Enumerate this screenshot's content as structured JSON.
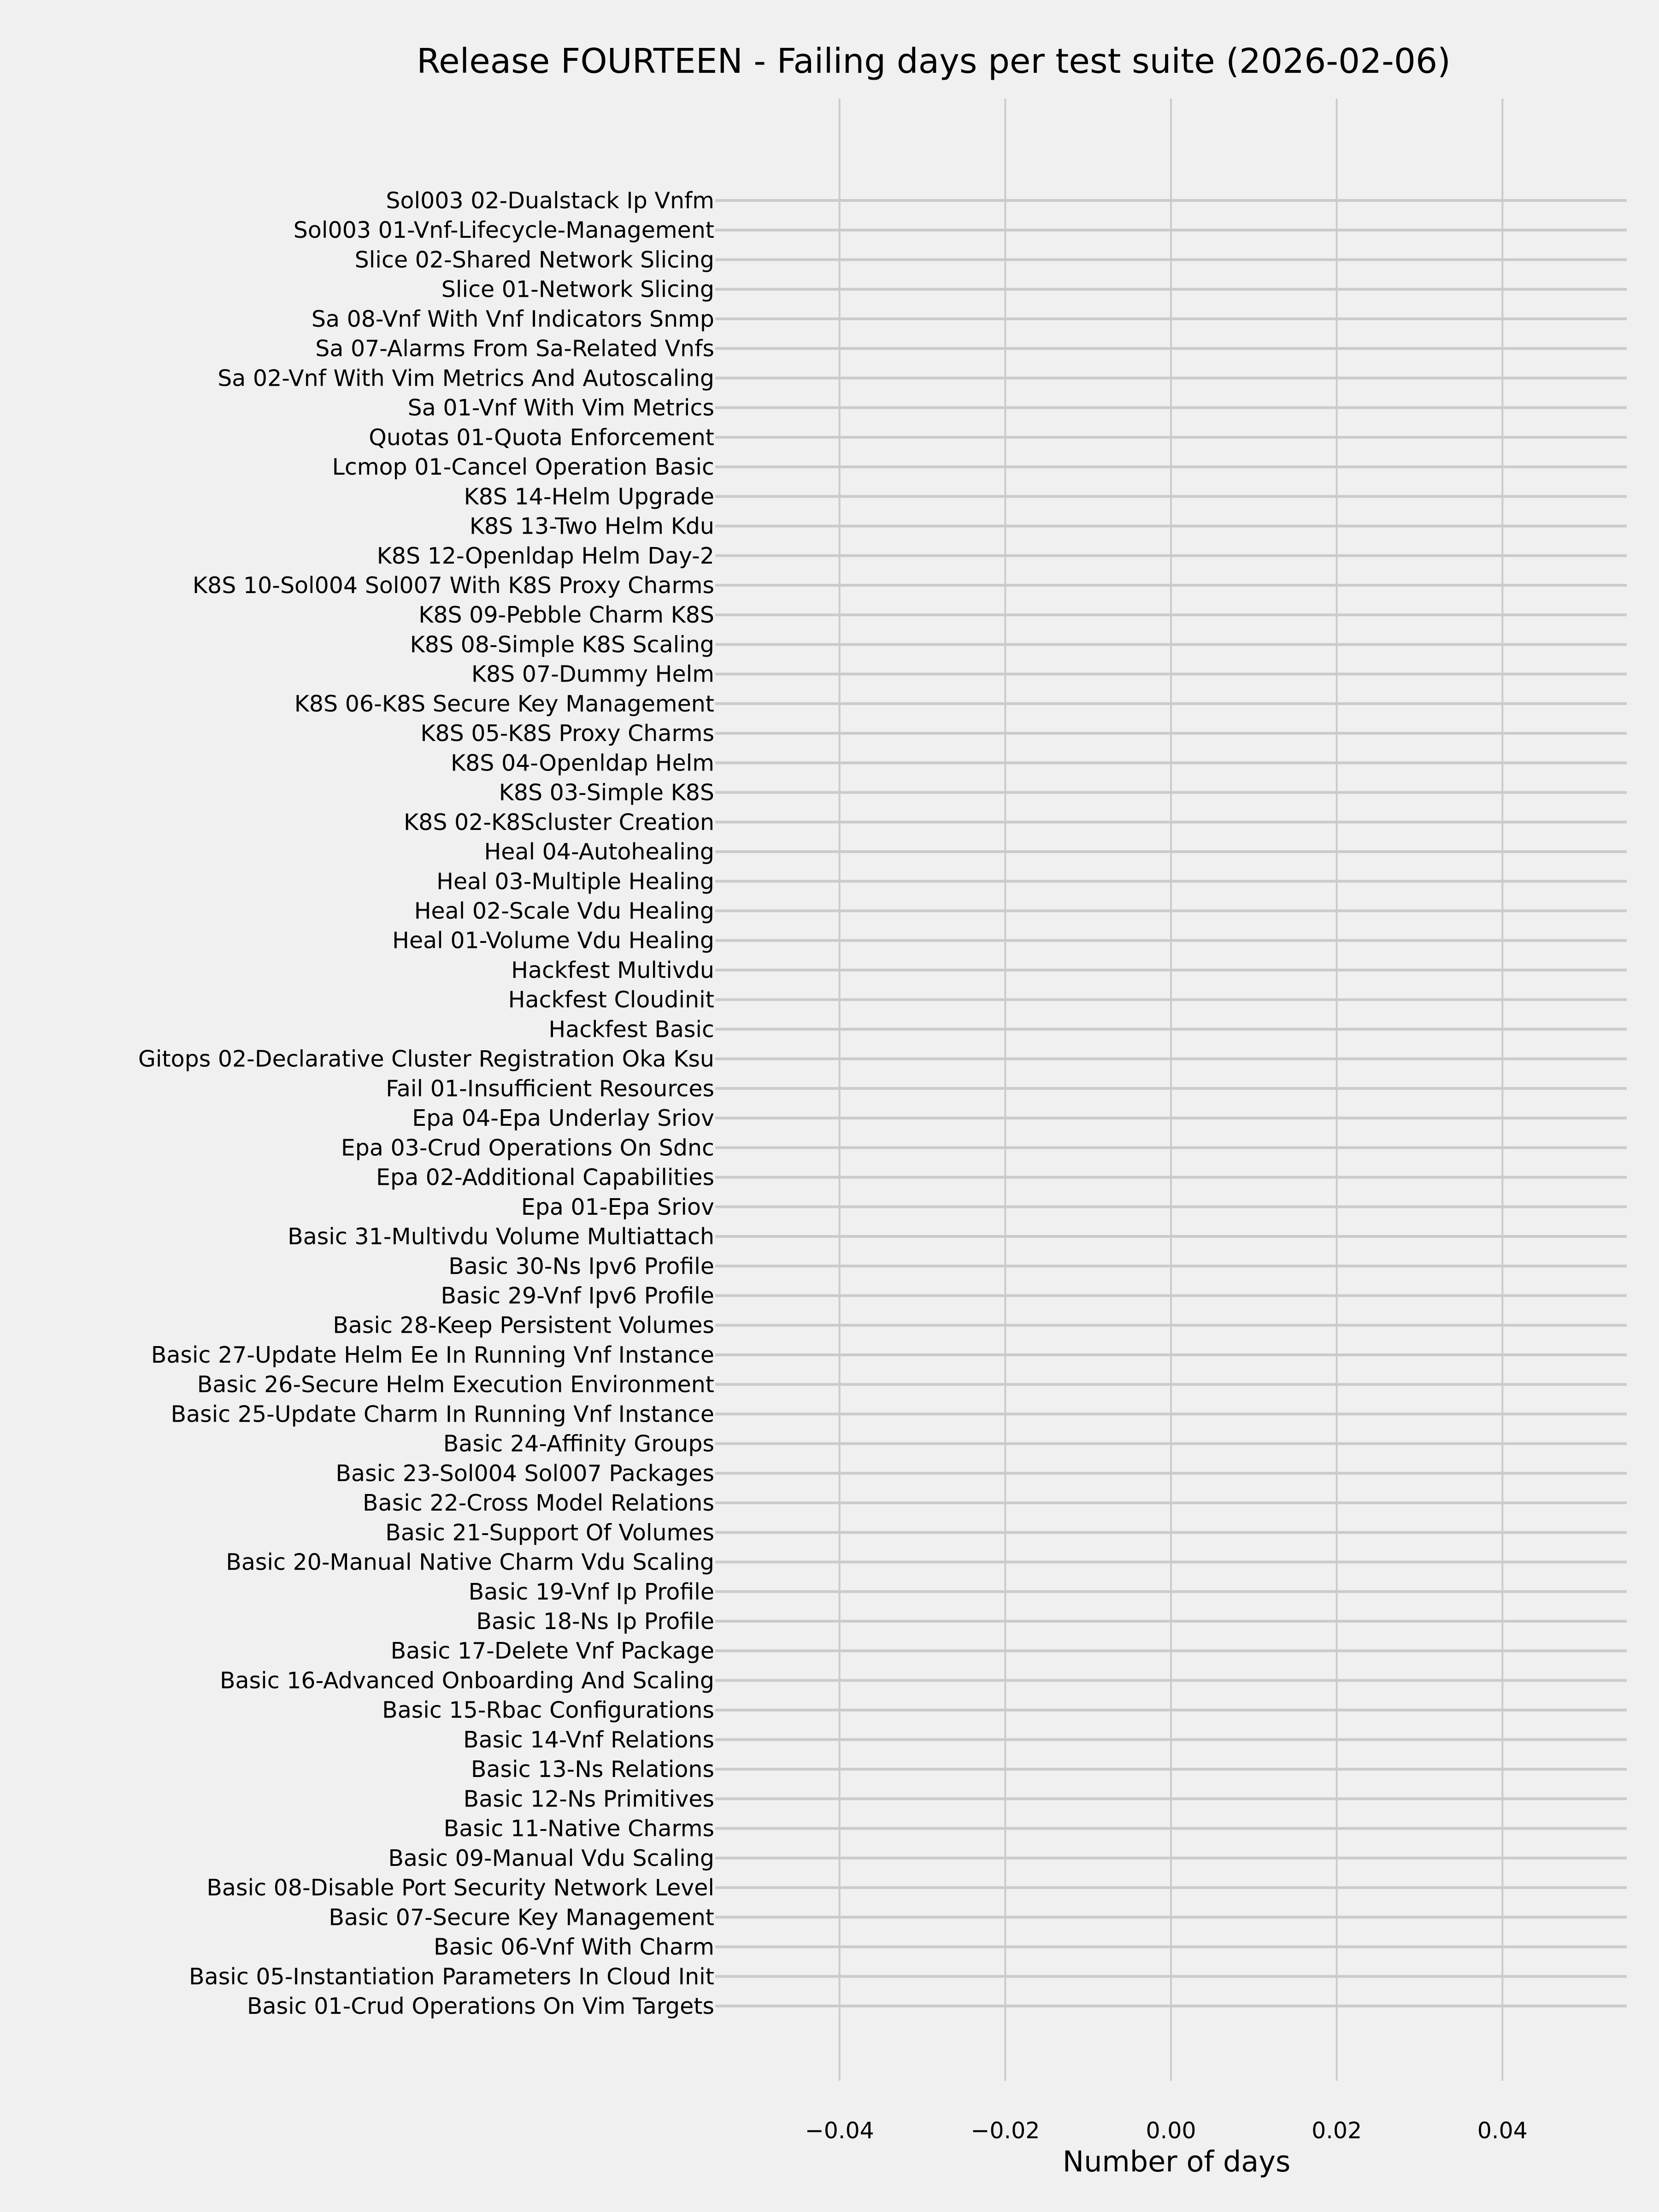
{
  "chart_data": {
    "type": "bar",
    "orientation": "horizontal",
    "title": "Release FOURTEEN - Failing days per test suite (2026-02-06)",
    "xlabel": "Number of days",
    "ylabel": "",
    "xlim": [
      -0.055,
      0.055
    ],
    "xticks": [
      -0.04,
      -0.02,
      0.0,
      0.02,
      0.04
    ],
    "xtick_labels": [
      "−0.04",
      "−0.02",
      "0.00",
      "0.02",
      "0.04"
    ],
    "grid": true,
    "colors": {
      "background": "#f0f0f0",
      "grid": "#cbcbcb",
      "bar": "#008fd5"
    },
    "categories": [
      "Sol003 02-Dualstack Ip Vnfm",
      "Sol003 01-Vnf-Lifecycle-Management",
      "Slice 02-Shared Network Slicing",
      "Slice 01-Network Slicing",
      "Sa 08-Vnf With Vnf Indicators Snmp",
      "Sa 07-Alarms From Sa-Related Vnfs",
      "Sa 02-Vnf With Vim Metrics And Autoscaling",
      "Sa 01-Vnf With Vim Metrics",
      "Quotas 01-Quota Enforcement",
      "Lcmop 01-Cancel Operation Basic",
      "K8S 14-Helm Upgrade",
      "K8S 13-Two Helm Kdu",
      "K8S 12-Openldap Helm Day-2",
      "K8S 10-Sol004 Sol007 With K8S Proxy Charms",
      "K8S 09-Pebble Charm K8S",
      "K8S 08-Simple K8S Scaling",
      "K8S 07-Dummy Helm",
      "K8S 06-K8S Secure Key Management",
      "K8S 05-K8S Proxy Charms",
      "K8S 04-Openldap Helm",
      "K8S 03-Simple K8S",
      "K8S 02-K8Scluster Creation",
      "Heal 04-Autohealing",
      "Heal 03-Multiple Healing",
      "Heal 02-Scale Vdu Healing",
      "Heal 01-Volume Vdu Healing",
      "Hackfest Multivdu",
      "Hackfest Cloudinit",
      "Hackfest Basic",
      "Gitops 02-Declarative Cluster Registration Oka Ksu",
      "Fail 01-Insufficient Resources",
      "Epa 04-Epa Underlay Sriov",
      "Epa 03-Crud Operations On Sdnc",
      "Epa 02-Additional Capabilities",
      "Epa 01-Epa Sriov",
      "Basic 31-Multivdu Volume Multiattach",
      "Basic 30-Ns Ipv6 Profile",
      "Basic 29-Vnf Ipv6 Profile",
      "Basic 28-Keep Persistent Volumes",
      "Basic 27-Update Helm Ee In Running Vnf Instance",
      "Basic 26-Secure Helm Execution Environment",
      "Basic 25-Update Charm In Running Vnf Instance",
      "Basic 24-Affinity Groups",
      "Basic 23-Sol004 Sol007 Packages",
      "Basic 22-Cross Model Relations",
      "Basic 21-Support Of Volumes",
      "Basic 20-Manual Native Charm Vdu Scaling",
      "Basic 19-Vnf Ip Profile",
      "Basic 18-Ns Ip Profile",
      "Basic 17-Delete Vnf Package",
      "Basic 16-Advanced Onboarding And Scaling",
      "Basic 15-Rbac Configurations",
      "Basic 14-Vnf Relations",
      "Basic 13-Ns Relations",
      "Basic 12-Ns Primitives",
      "Basic 11-Native Charms",
      "Basic 09-Manual Vdu Scaling",
      "Basic 08-Disable Port Security Network Level",
      "Basic 07-Secure Key Management",
      "Basic 06-Vnf With Charm",
      "Basic 05-Instantiation Parameters In Cloud Init",
      "Basic 01-Crud Operations On Vim Targets"
    ],
    "values": [
      0,
      0,
      0,
      0,
      0,
      0,
      0,
      0,
      0,
      0,
      0,
      0,
      0,
      0,
      0,
      0,
      0,
      0,
      0,
      0,
      0,
      0,
      0,
      0,
      0,
      0,
      0,
      0,
      0,
      0,
      0,
      0,
      0,
      0,
      0,
      0,
      0,
      0,
      0,
      0,
      0,
      0,
      0,
      0,
      0,
      0,
      0,
      0,
      0,
      0,
      0,
      0,
      0,
      0,
      0,
      0,
      0,
      0,
      0,
      0,
      0,
      0
    ]
  }
}
